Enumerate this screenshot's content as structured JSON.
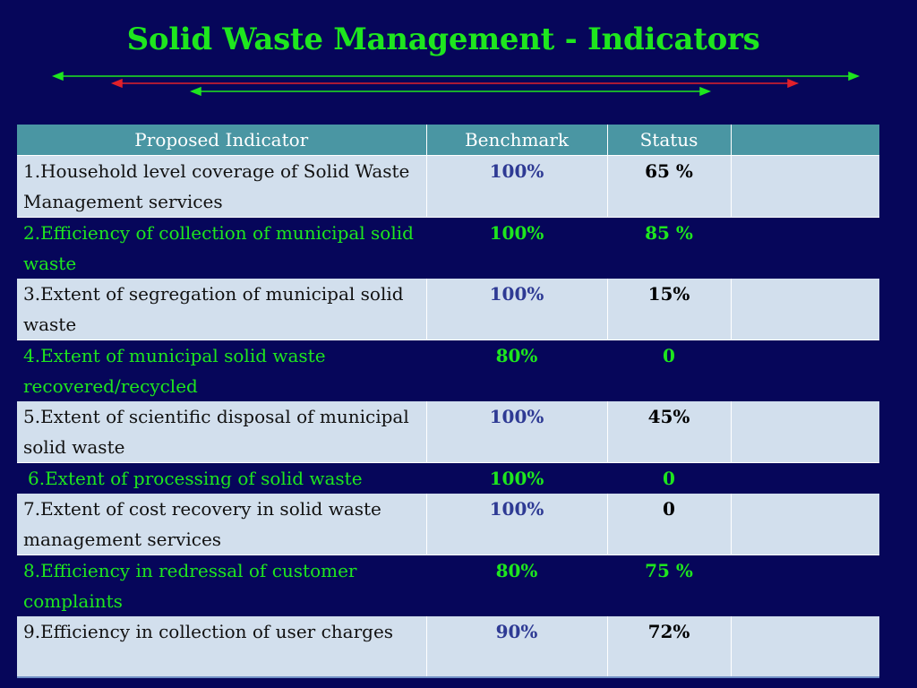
{
  "slide": {
    "title": "Solid Waste Management - Indicators"
  },
  "colors": {
    "background": "#06065a",
    "title": "#1ee61e",
    "header": "#4a96a3",
    "light_row": "#d2dfed",
    "green_text": "#1ee61e",
    "blue_text": "#2e3a94",
    "red_arrow": "#e0202a"
  },
  "table": {
    "headers": [
      "Proposed Indicator",
      "Benchmark",
      "Status",
      ""
    ],
    "rows": [
      {
        "indicator": "1.Household level coverage of Solid Waste Management services",
        "benchmark": "100%",
        "status": "65 %",
        "extra": ""
      },
      {
        "indicator": "2.Efficiency of collection of municipal solid waste",
        "benchmark": "100%",
        "status": "85 %",
        "extra": ""
      },
      {
        "indicator": "3.Extent of segregation of municipal solid waste",
        "benchmark": "100%",
        "status": "15%",
        "extra": ""
      },
      {
        "indicator": "4.Extent of municipal solid waste recovered/recycled",
        "benchmark": "80%",
        "status": "0",
        "extra": ""
      },
      {
        "indicator": "5.Extent of scientific disposal of municipal solid waste",
        "benchmark": "100%",
        "status": "45%",
        "extra": ""
      },
      {
        "indicator": "6.Extent of processing of solid waste",
        "benchmark": "100%",
        "status": "0",
        "extra": ""
      },
      {
        "indicator": "7.Extent of cost recovery in solid waste management services",
        "benchmark": "100%",
        "status": "0",
        "extra": ""
      },
      {
        "indicator": "8.Efficiency in redressal of customer complaints",
        "benchmark": "80%",
        "status": "75 %",
        "extra": ""
      },
      {
        "indicator": "9.Efficiency in collection of user  charges",
        "benchmark": "90%",
        "status": "72%",
        "extra": ""
      }
    ]
  }
}
